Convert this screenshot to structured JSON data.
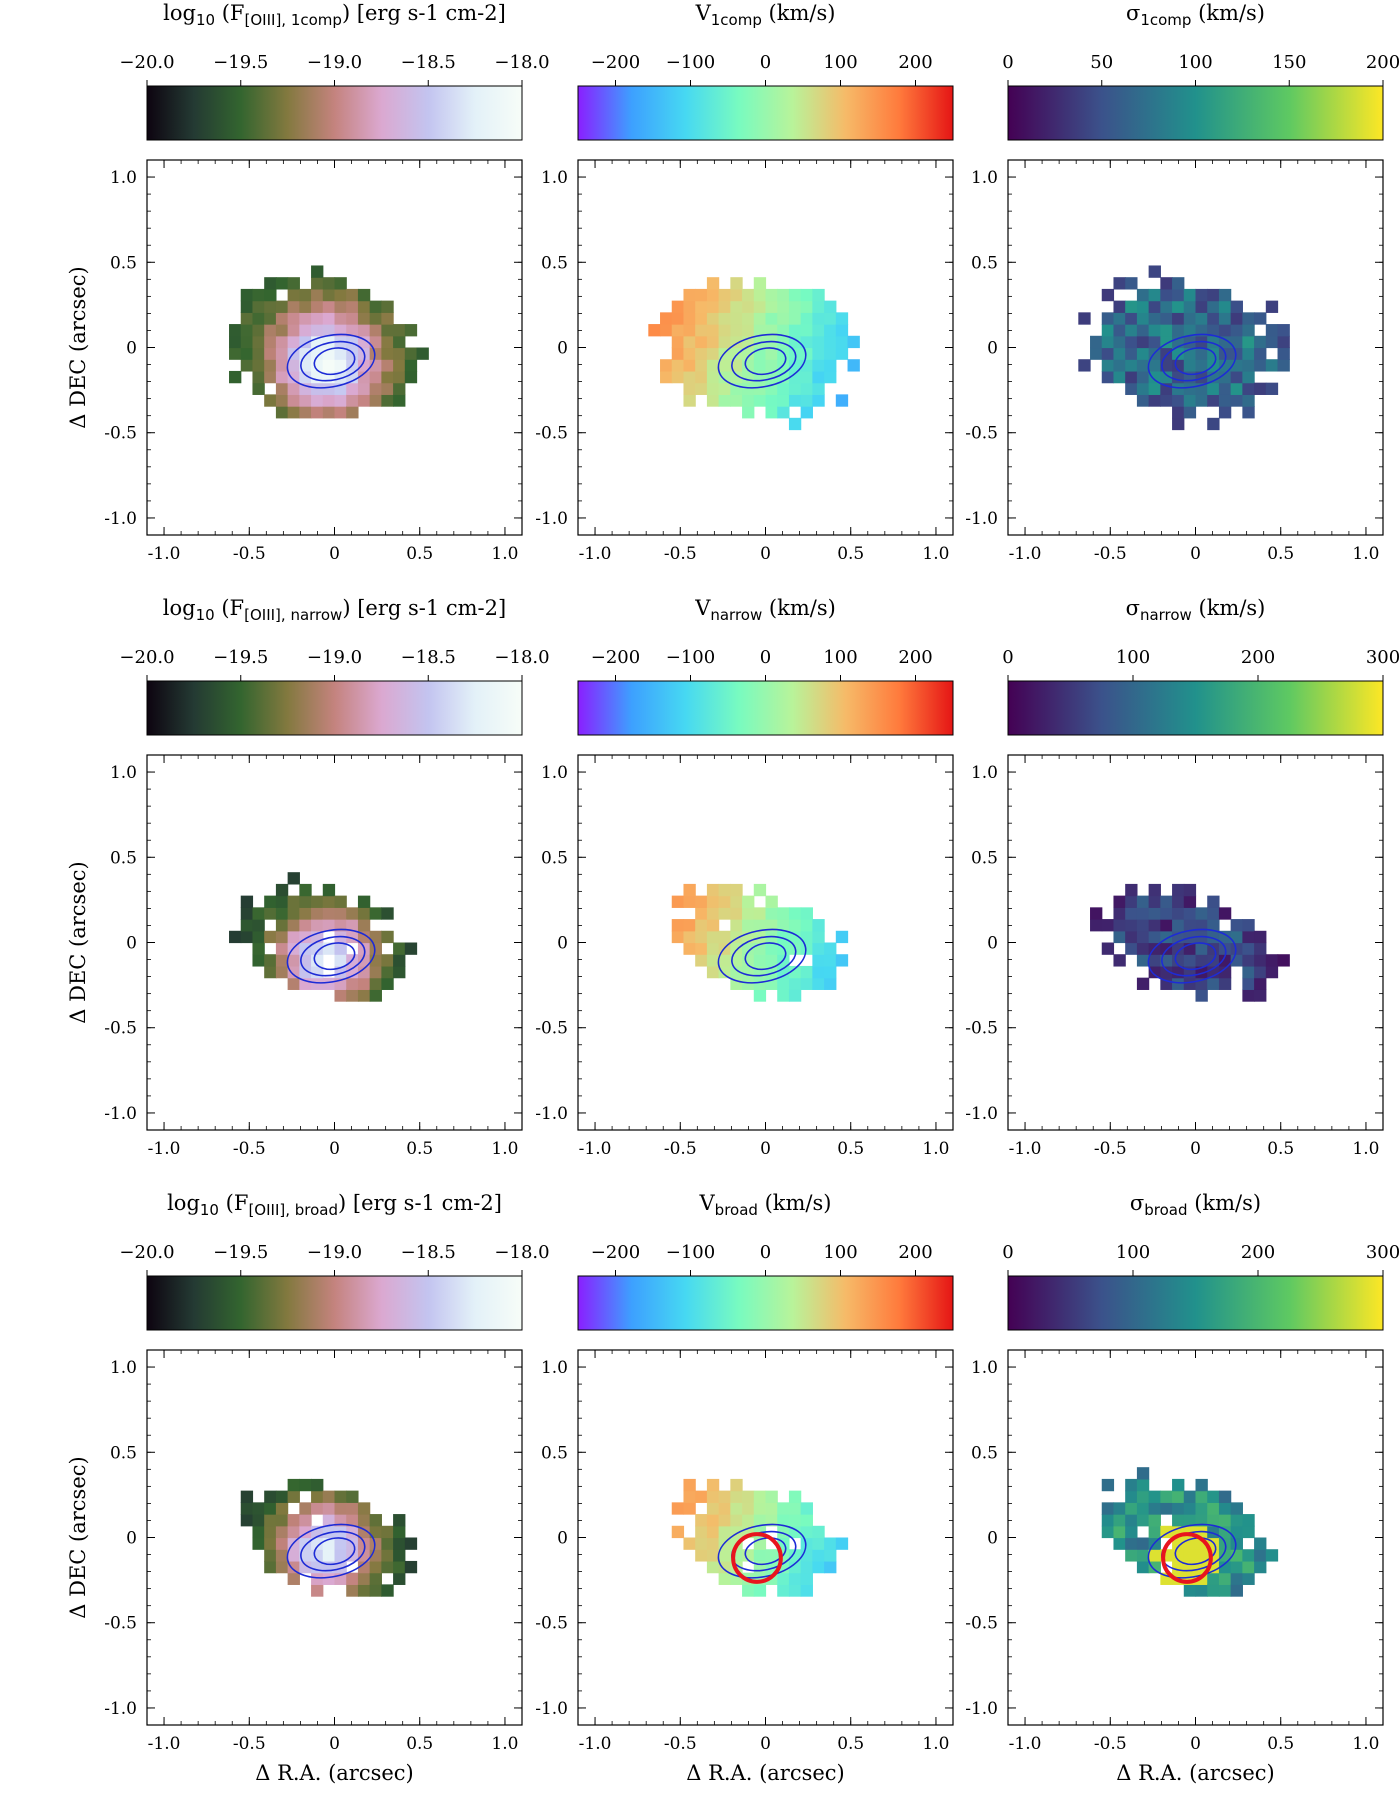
{
  "figure": {
    "x_axis_label": "Δ R.A. (arcsec)",
    "y_axis_label": "Δ DEC (arcsec)",
    "panel_ticks": [
      "-1.0",
      "-0.5",
      "0",
      "0.5",
      "1.0"
    ],
    "colormaps": {
      "flux": [
        "#0d0410",
        "#243a33",
        "#33652f",
        "#83793f",
        "#c4837e",
        "#dba8d0",
        "#c3c4f0",
        "#e3f1f8",
        "#f7fdf8"
      ],
      "velocity": [
        "#8a1fff",
        "#3da0ff",
        "#46d8f2",
        "#78fbc0",
        "#b8f39a",
        "#f6ba68",
        "#ff7a3c",
        "#e51515"
      ],
      "dispersion": [
        "#440154",
        "#3b528b",
        "#21918c",
        "#5ec962",
        "#fde725"
      ]
    }
  },
  "chart_data": [
    {
      "type": "heatmap",
      "row": 1,
      "col": 1,
      "title": "log₁₀ (F[OIII], 1comp) [erg s-1 cm-2]",
      "title_main": "log",
      "title_sub1": "10",
      "title_mid": " (F",
      "title_sub2": "[OIII], 1comp",
      "title_end": ") [erg s-1 cm-2]",
      "cbar_range": [
        -20.0,
        -18.0
      ],
      "cbar_ticks": [
        "−20.0",
        "−19.5",
        "−19.0",
        "−18.5",
        "−18.0"
      ],
      "colormap": "flux",
      "xlim": [
        -1.1,
        1.1
      ],
      "ylim": [
        -1.1,
        1.1
      ],
      "ylabel": "Δ DEC (arcsec)",
      "xlabel": "",
      "red_circle": false
    },
    {
      "type": "heatmap",
      "row": 1,
      "col": 2,
      "title": "V1comp (km/s)",
      "title_main": "V",
      "title_sub1": "1comp",
      "title_mid": "",
      "title_sub2": "",
      "title_end": " (km/s)",
      "cbar_range": [
        -250,
        250
      ],
      "cbar_ticks": [
        "−200",
        "−100",
        "0",
        "100",
        "200"
      ],
      "colormap": "velocity",
      "xlim": [
        -1.1,
        1.1
      ],
      "ylim": [
        -1.1,
        1.1
      ],
      "ylabel": "",
      "xlabel": "",
      "red_circle": false
    },
    {
      "type": "heatmap",
      "row": 1,
      "col": 3,
      "title": "σ1comp (km/s)",
      "title_main": "σ",
      "title_sub1": "1comp",
      "title_mid": "",
      "title_sub2": "",
      "title_end": " (km/s)",
      "cbar_range": [
        0,
        200
      ],
      "cbar_ticks": [
        "0",
        "50",
        "100",
        "150",
        "200"
      ],
      "colormap": "dispersion",
      "xlim": [
        -1.1,
        1.1
      ],
      "ylim": [
        -1.1,
        1.1
      ],
      "ylabel": "",
      "xlabel": "",
      "red_circle": false
    },
    {
      "type": "heatmap",
      "row": 2,
      "col": 1,
      "title": "log₁₀ (F[OIII], narrow) [erg s-1 cm-2]",
      "title_main": "log",
      "title_sub1": "10",
      "title_mid": " (F",
      "title_sub2": "[OIII], narrow",
      "title_end": ") [erg s-1 cm-2]",
      "cbar_range": [
        -20.0,
        -18.0
      ],
      "cbar_ticks": [
        "−20.0",
        "−19.5",
        "−19.0",
        "−18.5",
        "−18.0"
      ],
      "colormap": "flux",
      "xlim": [
        -1.1,
        1.1
      ],
      "ylim": [
        -1.1,
        1.1
      ],
      "ylabel": "Δ DEC (arcsec)",
      "xlabel": "",
      "red_circle": false
    },
    {
      "type": "heatmap",
      "row": 2,
      "col": 2,
      "title": "Vnarrow (km/s)",
      "title_main": "V",
      "title_sub1": "narrow",
      "title_mid": "",
      "title_sub2": "",
      "title_end": " (km/s)",
      "cbar_range": [
        -250,
        250
      ],
      "cbar_ticks": [
        "−200",
        "−100",
        "0",
        "100",
        "200"
      ],
      "colormap": "velocity",
      "xlim": [
        -1.1,
        1.1
      ],
      "ylim": [
        -1.1,
        1.1
      ],
      "ylabel": "",
      "xlabel": "",
      "red_circle": false
    },
    {
      "type": "heatmap",
      "row": 2,
      "col": 3,
      "title": "σnarrow (km/s)",
      "title_main": "σ",
      "title_sub1": "narrow",
      "title_mid": "",
      "title_sub2": "",
      "title_end": " (km/s)",
      "cbar_range": [
        0,
        300
      ],
      "cbar_ticks": [
        "0",
        "100",
        "200",
        "300"
      ],
      "colormap": "dispersion",
      "xlim": [
        -1.1,
        1.1
      ],
      "ylim": [
        -1.1,
        1.1
      ],
      "ylabel": "",
      "xlabel": "",
      "red_circle": false
    },
    {
      "type": "heatmap",
      "row": 3,
      "col": 1,
      "title": "log₁₀ (F[OIII], broad) [erg s-1 cm-2]",
      "title_main": "log",
      "title_sub1": "10",
      "title_mid": " (F",
      "title_sub2": "[OIII], broad",
      "title_end": ") [erg s-1 cm-2]",
      "cbar_range": [
        -20.0,
        -18.0
      ],
      "cbar_ticks": [
        "−20.0",
        "−19.5",
        "−19.0",
        "−18.5",
        "−18.0"
      ],
      "colormap": "flux",
      "xlim": [
        -1.1,
        1.1
      ],
      "ylim": [
        -1.1,
        1.1
      ],
      "ylabel": "Δ DEC (arcsec)",
      "xlabel": "Δ R.A. (arcsec)",
      "red_circle": false
    },
    {
      "type": "heatmap",
      "row": 3,
      "col": 2,
      "title": "Vbroad (km/s)",
      "title_main": "V",
      "title_sub1": "broad",
      "title_mid": "",
      "title_sub2": "",
      "title_end": " (km/s)",
      "cbar_range": [
        -250,
        250
      ],
      "cbar_ticks": [
        "−200",
        "−100",
        "0",
        "100",
        "200"
      ],
      "colormap": "velocity",
      "xlim": [
        -1.1,
        1.1
      ],
      "ylim": [
        -1.1,
        1.1
      ],
      "ylabel": "",
      "xlabel": "Δ R.A. (arcsec)",
      "red_circle": true
    },
    {
      "type": "heatmap",
      "row": 3,
      "col": 3,
      "title": "σbroad (km/s)",
      "title_main": "σ",
      "title_sub1": "broad",
      "title_mid": "",
      "title_sub2": "",
      "title_end": " (km/s)",
      "cbar_range": [
        0,
        300
      ],
      "cbar_ticks": [
        "0",
        "100",
        "200",
        "300"
      ],
      "colormap": "dispersion",
      "xlim": [
        -1.1,
        1.1
      ],
      "ylim": [
        -1.1,
        1.1
      ],
      "ylabel": "",
      "xlabel": "Δ R.A. (arcsec)",
      "red_circle": true
    }
  ]
}
